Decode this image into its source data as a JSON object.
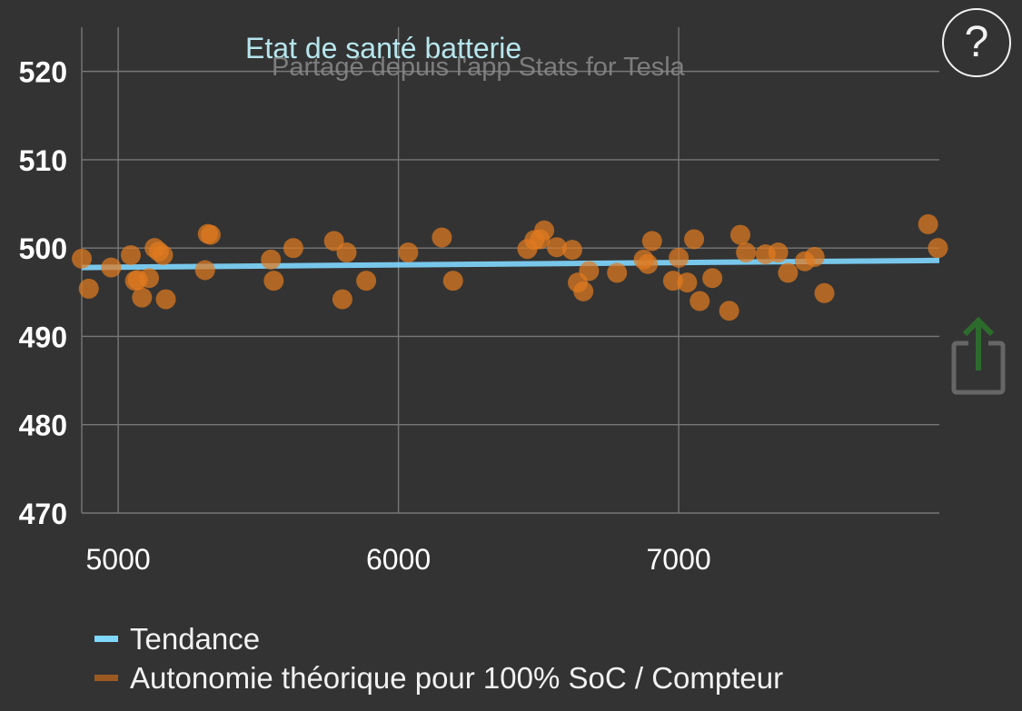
{
  "chart_data": {
    "type": "scatter",
    "title": "Etat de santé batterie",
    "subtitle": "Partagé depuis l'app Stats for Tesla",
    "xlim": [
      4870,
      7930
    ],
    "ylim": [
      470,
      525
    ],
    "x_ticks": [
      5000,
      6000,
      7000
    ],
    "x_tick_labels": [
      "5000",
      "6000",
      "7000"
    ],
    "y_ticks": [
      470,
      480,
      490,
      500,
      510,
      520
    ],
    "y_tick_labels": [
      "470",
      "480",
      "490",
      "500",
      "510",
      "520"
    ],
    "grid": true,
    "legend_position": "bottom",
    "series": [
      {
        "name": "Tendance",
        "type": "line",
        "color": "#80d8ff",
        "x": [
          4870,
          7930
        ],
        "y": [
          497.8,
          498.6
        ]
      },
      {
        "name": "Autonomie théorique pour 100% SoC / Compteur",
        "type": "scatter",
        "color": "#e07a1f",
        "x": [
          4870,
          4895,
          4975,
          5045,
          5060,
          5070,
          5085,
          5110,
          5130,
          5145,
          5160,
          5170,
          5310,
          5320,
          5330,
          5545,
          5555,
          5625,
          5770,
          5800,
          5815,
          5885,
          6035,
          6155,
          6195,
          6460,
          6485,
          6505,
          6520,
          6565,
          6620,
          6640,
          6660,
          6680,
          6780,
          6875,
          6890,
          6905,
          6980,
          7000,
          7030,
          7055,
          7075,
          7120,
          7180,
          7220,
          7240,
          7310,
          7355,
          7390,
          7450,
          7485,
          7520,
          7890,
          7925
        ],
        "y": [
          498.8,
          495.4,
          497.8,
          499.2,
          496.3,
          496.4,
          494.4,
          496.6,
          500.0,
          499.6,
          499.2,
          494.2,
          497.5,
          501.6,
          501.5,
          498.7,
          496.3,
          500.0,
          500.8,
          494.2,
          499.5,
          496.3,
          499.5,
          501.2,
          496.3,
          499.9,
          500.9,
          501.0,
          502.0,
          500.1,
          499.8,
          496.1,
          495.1,
          497.4,
          497.2,
          498.7,
          498.2,
          500.8,
          496.3,
          498.9,
          496.1,
          501.0,
          494.0,
          496.6,
          492.9,
          501.5,
          499.5,
          499.3,
          499.5,
          497.2,
          498.5,
          499.0,
          494.9,
          502.7,
          500.0
        ]
      }
    ]
  },
  "ui": {
    "help_label": "?",
    "share_icon": "share-icon"
  }
}
